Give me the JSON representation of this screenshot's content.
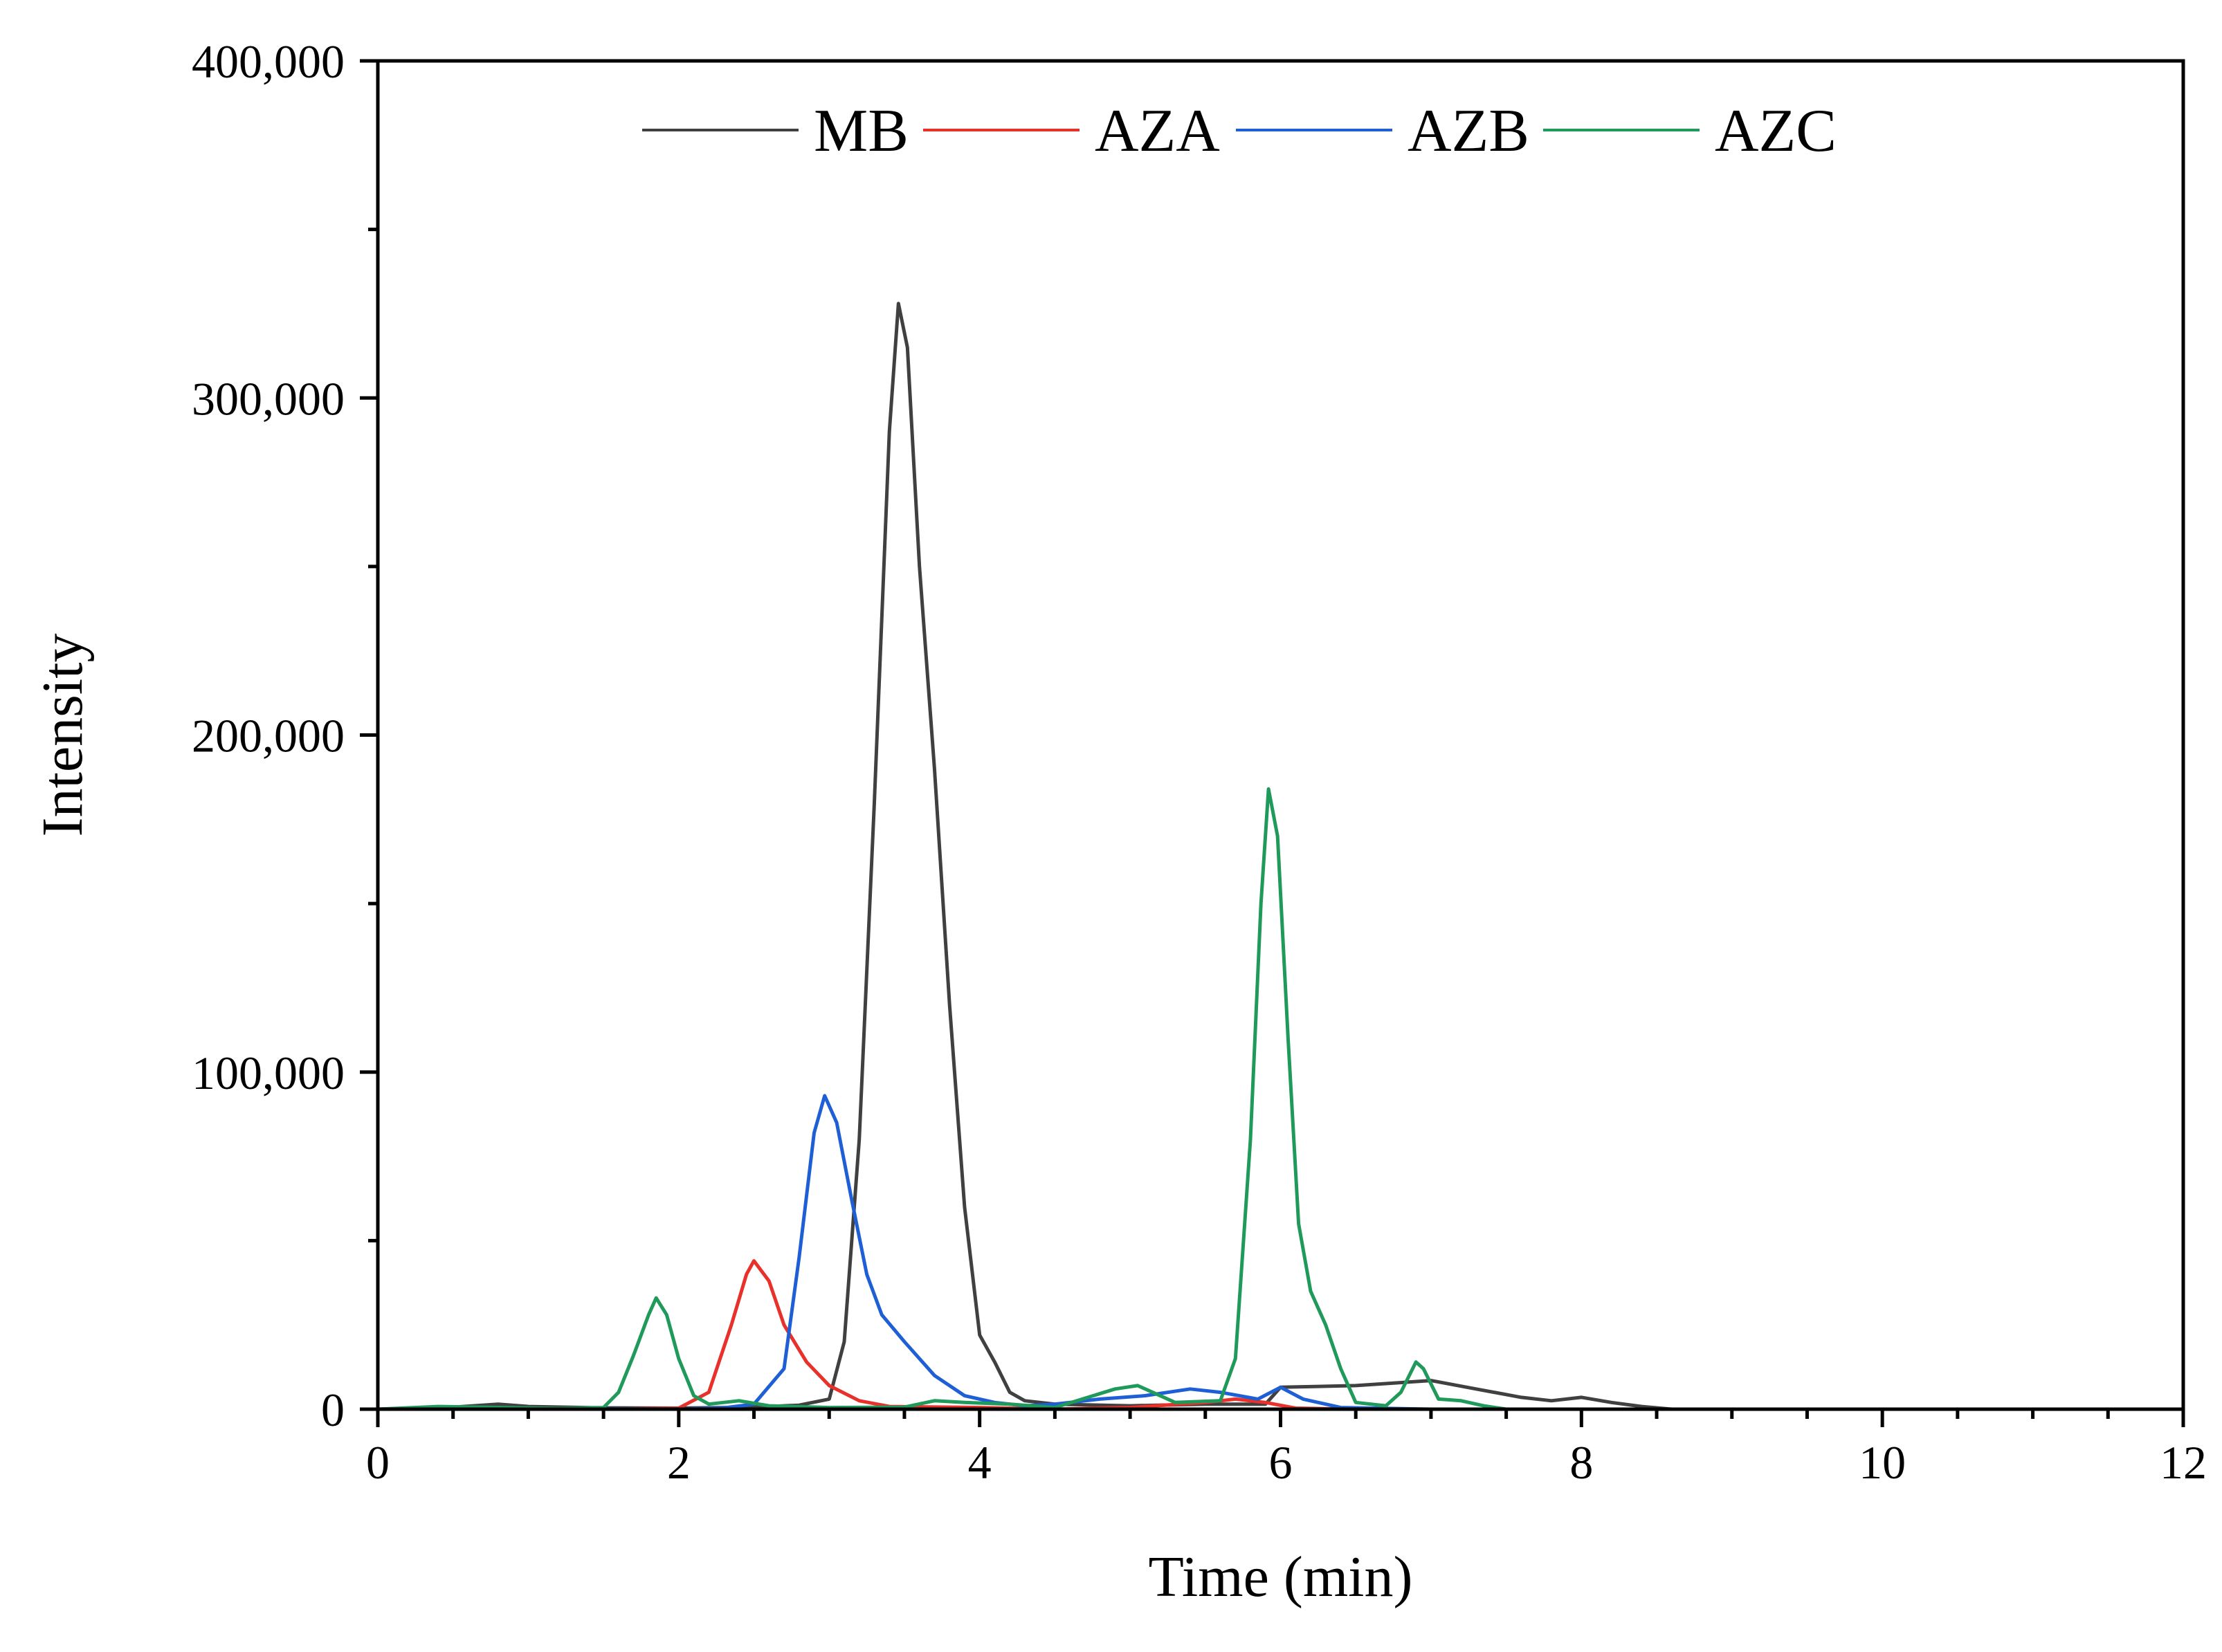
{
  "chart_data": {
    "type": "line",
    "title": "",
    "xlabel": "Time (min)",
    "ylabel": "Intensity",
    "xlim": [
      0,
      12
    ],
    "ylim": [
      0,
      400000
    ],
    "x_ticks": [
      0,
      2,
      4,
      6,
      8,
      10,
      12
    ],
    "x_tick_labels": [
      "0",
      "2",
      "4",
      "6",
      "8",
      "10",
      "12"
    ],
    "y_ticks": [
      0,
      100000,
      200000,
      300000,
      400000
    ],
    "y_tick_labels": [
      "0",
      "100,000",
      "200,000",
      "300,000",
      "400,000"
    ],
    "grid": false,
    "legend_position": "top-center",
    "series": [
      {
        "name": "MB",
        "color": "#404040",
        "points": [
          [
            0,
            0
          ],
          [
            0.5,
            600
          ],
          [
            0.8,
            1500
          ],
          [
            1,
            800
          ],
          [
            1.5,
            400
          ],
          [
            2,
            300
          ],
          [
            2.5,
            600
          ],
          [
            2.8,
            1200
          ],
          [
            3.0,
            3000
          ],
          [
            3.1,
            20000
          ],
          [
            3.2,
            80000
          ],
          [
            3.3,
            180000
          ],
          [
            3.4,
            290000
          ],
          [
            3.46,
            328000
          ],
          [
            3.52,
            315000
          ],
          [
            3.6,
            250000
          ],
          [
            3.7,
            190000
          ],
          [
            3.8,
            120000
          ],
          [
            3.9,
            60000
          ],
          [
            4.0,
            22000
          ],
          [
            4.1,
            14000
          ],
          [
            4.2,
            5000
          ],
          [
            4.3,
            2500
          ],
          [
            4.5,
            1500
          ],
          [
            5.0,
            1000
          ],
          [
            5.5,
            1500
          ],
          [
            5.9,
            1500
          ],
          [
            6.0,
            6500
          ],
          [
            6.5,
            7000
          ],
          [
            7.0,
            8500
          ],
          [
            7.3,
            6000
          ],
          [
            7.6,
            3500
          ],
          [
            7.8,
            2500
          ],
          [
            8.0,
            3500
          ],
          [
            8.2,
            2000
          ],
          [
            8.4,
            800
          ],
          [
            8.6,
            0
          ],
          [
            12,
            0
          ]
        ]
      },
      {
        "name": "AZA",
        "color": "#e8312a",
        "points": [
          [
            0,
            0
          ],
          [
            1,
            0
          ],
          [
            1.5,
            0
          ],
          [
            2.0,
            300
          ],
          [
            2.2,
            5000
          ],
          [
            2.35,
            25000
          ],
          [
            2.45,
            40000
          ],
          [
            2.5,
            44000
          ],
          [
            2.6,
            38000
          ],
          [
            2.7,
            25000
          ],
          [
            2.85,
            14000
          ],
          [
            3.0,
            7000
          ],
          [
            3.2,
            2500
          ],
          [
            3.4,
            800
          ],
          [
            4.0,
            500
          ],
          [
            4.5,
            0
          ],
          [
            5.0,
            500
          ],
          [
            5.5,
            2000
          ],
          [
            5.7,
            3000
          ],
          [
            5.9,
            2000
          ],
          [
            6.1,
            300
          ],
          [
            6.5,
            0
          ],
          [
            8,
            0
          ],
          [
            12,
            0
          ]
        ]
      },
      {
        "name": "AZB",
        "color": "#1f5fd6",
        "points": [
          [
            0,
            0
          ],
          [
            1,
            200
          ],
          [
            2,
            0
          ],
          [
            2.3,
            400
          ],
          [
            2.5,
            1500
          ],
          [
            2.7,
            12000
          ],
          [
            2.8,
            45000
          ],
          [
            2.9,
            82000
          ],
          [
            2.97,
            93000
          ],
          [
            3.05,
            85000
          ],
          [
            3.15,
            62000
          ],
          [
            3.25,
            40000
          ],
          [
            3.35,
            28000
          ],
          [
            3.5,
            20000
          ],
          [
            3.7,
            10000
          ],
          [
            3.9,
            4000
          ],
          [
            4.1,
            2000
          ],
          [
            4.3,
            1000
          ],
          [
            4.5,
            1500
          ],
          [
            4.8,
            3000
          ],
          [
            5.1,
            4000
          ],
          [
            5.4,
            6000
          ],
          [
            5.6,
            5000
          ],
          [
            5.85,
            3000
          ],
          [
            6.0,
            6500
          ],
          [
            6.15,
            3000
          ],
          [
            6.4,
            500
          ],
          [
            7,
            0
          ],
          [
            12,
            0
          ]
        ]
      },
      {
        "name": "AZC",
        "color": "#1f9a5a",
        "points": [
          [
            0,
            0
          ],
          [
            0.4,
            800
          ],
          [
            1.2,
            200
          ],
          [
            1.5,
            500
          ],
          [
            1.6,
            5000
          ],
          [
            1.7,
            16000
          ],
          [
            1.8,
            28000
          ],
          [
            1.85,
            33000
          ],
          [
            1.92,
            28000
          ],
          [
            2.0,
            15000
          ],
          [
            2.1,
            4000
          ],
          [
            2.2,
            1500
          ],
          [
            2.4,
            2500
          ],
          [
            2.6,
            1000
          ],
          [
            3.0,
            500
          ],
          [
            3.5,
            600
          ],
          [
            3.7,
            2500
          ],
          [
            3.9,
            2000
          ],
          [
            4.2,
            1500
          ],
          [
            4.5,
            500
          ],
          [
            4.9,
            6000
          ],
          [
            5.05,
            7000
          ],
          [
            5.3,
            2000
          ],
          [
            5.6,
            2500
          ],
          [
            5.7,
            15000
          ],
          [
            5.8,
            80000
          ],
          [
            5.87,
            150000
          ],
          [
            5.92,
            184000
          ],
          [
            5.98,
            170000
          ],
          [
            6.05,
            110000
          ],
          [
            6.12,
            55000
          ],
          [
            6.2,
            35000
          ],
          [
            6.3,
            25000
          ],
          [
            6.4,
            12000
          ],
          [
            6.5,
            2000
          ],
          [
            6.7,
            1000
          ],
          [
            6.8,
            5000
          ],
          [
            6.9,
            14000
          ],
          [
            6.95,
            12000
          ],
          [
            7.05,
            3000
          ],
          [
            7.2,
            2500
          ],
          [
            7.35,
            1000
          ],
          [
            7.5,
            0
          ],
          [
            12,
            0
          ]
        ]
      }
    ]
  }
}
